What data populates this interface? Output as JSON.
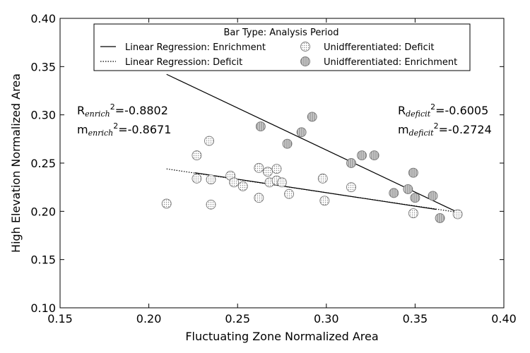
{
  "chart_data": {
    "type": "scatter",
    "xlabel": "Fluctuating Zone Normalized Area",
    "ylabel": "High Elevation Normalized Area",
    "xlim": [
      0.15,
      0.4
    ],
    "ylim": [
      0.1,
      0.4
    ],
    "xticks": [
      0.15,
      0.2,
      0.25,
      0.3,
      0.35,
      0.4
    ],
    "yticks": [
      0.1,
      0.15,
      0.2,
      0.25,
      0.3,
      0.35,
      0.4
    ],
    "xtick_labels": [
      "0.15",
      "0.20",
      "0.25",
      "0.30",
      "0.35",
      "0.40"
    ],
    "ytick_labels": [
      "0.10",
      "0.15",
      "0.20",
      "0.25",
      "0.30",
      "0.35",
      "0.40"
    ],
    "grid": false,
    "legend": {
      "title": "Bar Type: Analysis Period",
      "placement": "top-center",
      "entries": [
        "Linear Regression: Enrichment",
        "Linear Regression: Deficit",
        "Unidfferentiated: Deficit",
        "Unidfferentiated: Enrichment"
      ]
    },
    "series": [
      {
        "name": "Unidfferentiated: Deficit",
        "marker": "circle-dotted",
        "points": [
          [
            0.21,
            0.208
          ],
          [
            0.227,
            0.258
          ],
          [
            0.227,
            0.234
          ],
          [
            0.234,
            0.273
          ],
          [
            0.235,
            0.233
          ],
          [
            0.235,
            0.207
          ],
          [
            0.246,
            0.237
          ],
          [
            0.248,
            0.23
          ],
          [
            0.253,
            0.226
          ],
          [
            0.262,
            0.245
          ],
          [
            0.262,
            0.214
          ],
          [
            0.267,
            0.241
          ],
          [
            0.268,
            0.23
          ],
          [
            0.272,
            0.244
          ],
          [
            0.272,
            0.232
          ],
          [
            0.275,
            0.23
          ],
          [
            0.279,
            0.218
          ],
          [
            0.298,
            0.234
          ],
          [
            0.299,
            0.211
          ],
          [
            0.314,
            0.225
          ],
          [
            0.349,
            0.198
          ],
          [
            0.374,
            0.197
          ]
        ]
      },
      {
        "name": "Unidfferentiated: Enrichment",
        "marker": "circle-hatched",
        "points": [
          [
            0.263,
            0.288
          ],
          [
            0.278,
            0.27
          ],
          [
            0.286,
            0.282
          ],
          [
            0.292,
            0.298
          ],
          [
            0.314,
            0.25
          ],
          [
            0.32,
            0.258
          ],
          [
            0.327,
            0.258
          ],
          [
            0.338,
            0.219
          ],
          [
            0.346,
            0.223
          ],
          [
            0.349,
            0.24
          ],
          [
            0.35,
            0.214
          ],
          [
            0.36,
            0.216
          ],
          [
            0.364,
            0.193
          ]
        ]
      }
    ],
    "regressions": [
      {
        "name": "Linear Regression: Enrichment",
        "style": "solid",
        "x": [
          0.21,
          0.374
        ],
        "y": [
          0.342,
          0.199
        ]
      },
      {
        "name": "Linear Regression: Enrichment",
        "style": "solid",
        "x": [
          0.226,
          0.362
        ],
        "y": [
          0.24,
          0.202
        ]
      },
      {
        "name": "Linear Regression: Deficit",
        "style": "dotted",
        "x": [
          0.21,
          0.374
        ],
        "y": [
          0.244,
          0.199
        ]
      }
    ],
    "annotations": {
      "left": {
        "line1": {
          "pre": "R",
          "sub": "enrich",
          "sup": "2",
          "post": "=-0.8802"
        },
        "line2": {
          "pre": "m",
          "sub": "enrich",
          "sup": "2",
          "post": "=-0.8671"
        }
      },
      "right": {
        "line1": {
          "pre": "R",
          "sub": "deficit",
          "sup": "2",
          "post": "=-0.6005"
        },
        "line2": {
          "pre": "m",
          "sub": "deficit",
          "sup": "2",
          "post": "=-0.2724"
        }
      }
    }
  }
}
